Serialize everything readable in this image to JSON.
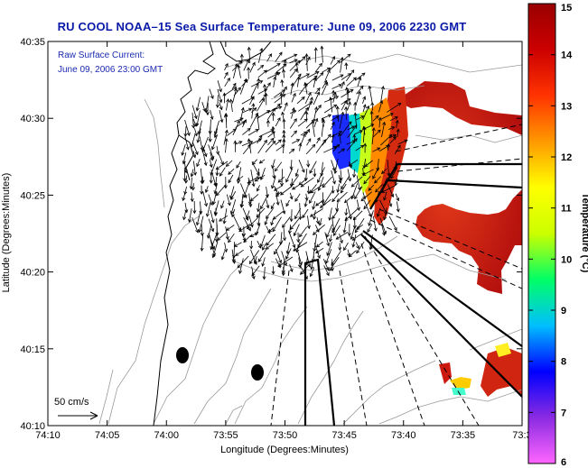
{
  "title": "RU COOL  NOAA–15  Sea Surface Temperature:  June 09, 2006 2230 GMT",
  "annotation": {
    "line1": "Raw Surface Current:",
    "line2": "June 09, 2006 23:00 GMT"
  },
  "scale_label": "50 cm/s",
  "axes": {
    "xlabel": "Longitude (Degrees:Minutes)",
    "ylabel": "Latitude (Degrees:Minutes)",
    "x_ticks": [
      "74:10",
      "74:05",
      "74:00",
      "73:55",
      "73:50",
      "73:45",
      "73:40",
      "73:35",
      "73:3"
    ],
    "y_ticks": [
      "40:35",
      "40:30",
      "40:25",
      "40:20",
      "40:15",
      "40:10"
    ]
  },
  "colorbar": {
    "label": "Temperature (°C)",
    "ticks": [
      "15",
      "14",
      "13",
      "12",
      "11",
      "10",
      "9",
      "8",
      "7",
      "6"
    ],
    "min": 6,
    "max": 15,
    "stops": [
      "#ff66ff",
      "#8a2be2",
      "#0000ff",
      "#00bfff",
      "#00ff66",
      "#ccff00",
      "#ffff00",
      "#ff9900",
      "#ff3300",
      "#cc0000",
      "#990000"
    ]
  },
  "map_colors": {
    "land": "#ffffff",
    "coast": "#000000",
    "bathymetry": "#999999",
    "vectors": "#000000"
  }
}
